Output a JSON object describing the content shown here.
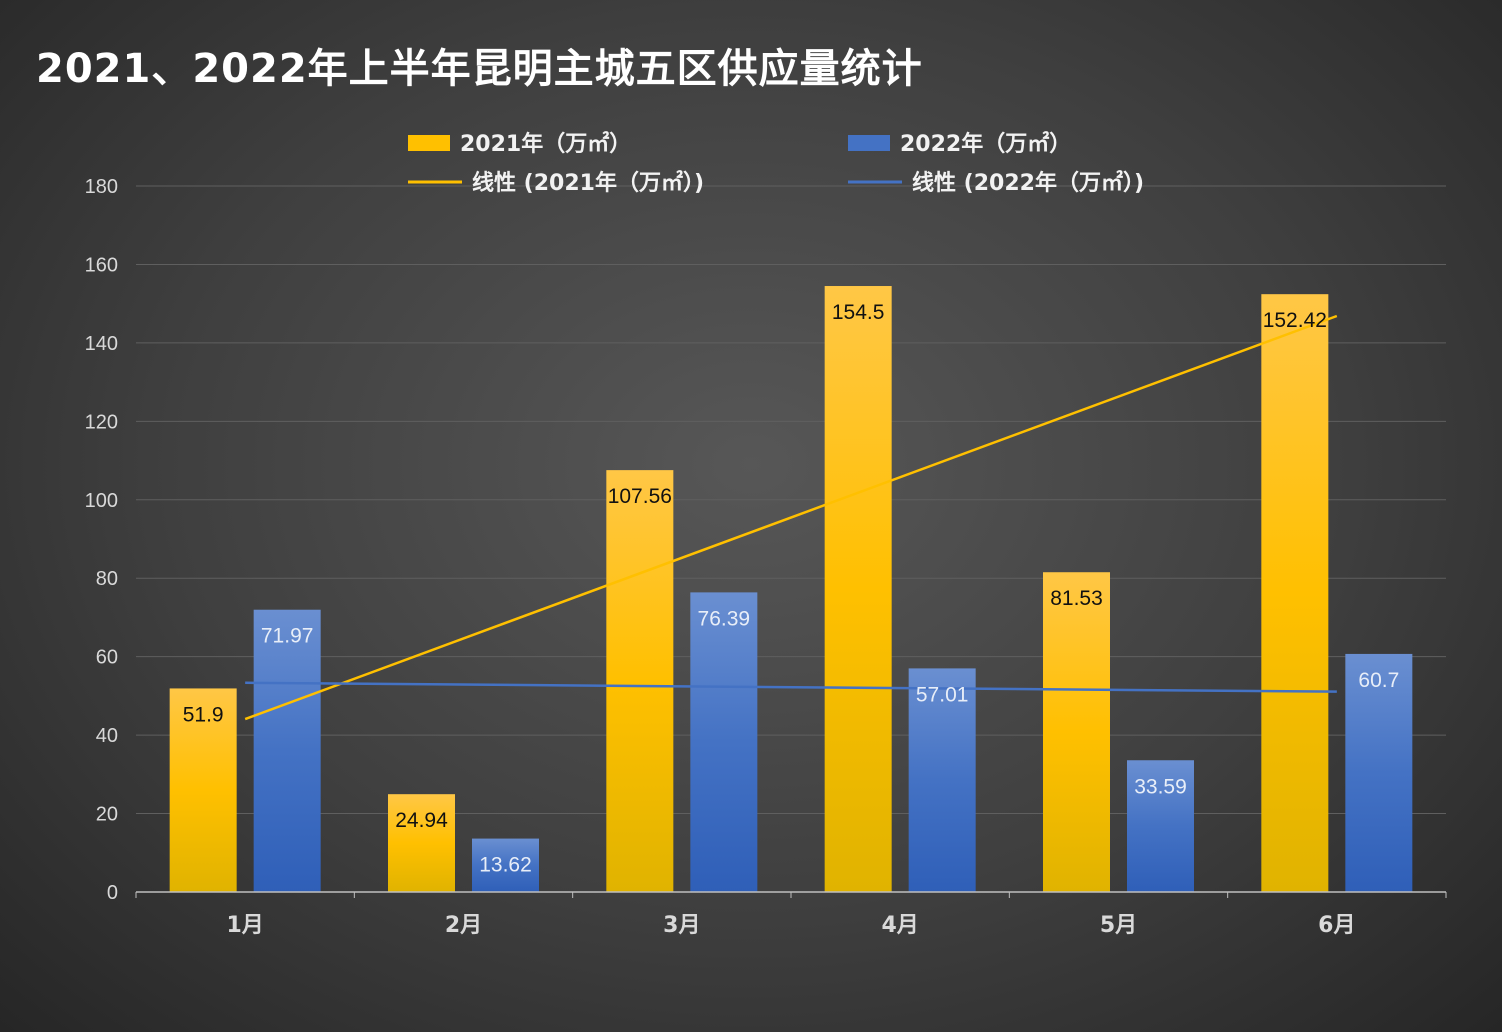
{
  "title": "2021、2022年上半年昆明主城五区供应量统计",
  "colors": {
    "series_2021": "#ffc000",
    "series_2022": "#4472c4",
    "trend_2021": "#ffc000",
    "trend_2022": "#4472c4",
    "grid": "#5f5f5f",
    "axis": "#bfbfbf"
  },
  "legend": {
    "position": "top",
    "items": [
      {
        "label": "2021年（万㎡）",
        "kind": "bar",
        "color": "#ffc000"
      },
      {
        "label": "2022年（万㎡）",
        "kind": "bar",
        "color": "#4472c4"
      },
      {
        "label": "线性 (2021年（万㎡）)",
        "kind": "line",
        "color": "#ffc000"
      },
      {
        "label": "线性 (2022年（万㎡）)",
        "kind": "line",
        "color": "#4472c4"
      }
    ]
  },
  "chart_data": {
    "type": "bar",
    "title": "2021、2022年上半年昆明主城五区供应量统计",
    "categories": [
      "1月",
      "2月",
      "3月",
      "4月",
      "5月",
      "6月"
    ],
    "series": [
      {
        "name": "2021年（万㎡）",
        "values": [
          51.9,
          24.94,
          107.56,
          154.5,
          81.53,
          152.42
        ],
        "labels": [
          "51.9",
          "24.94",
          "107.56",
          "154.5",
          "81.53",
          "152.42"
        ]
      },
      {
        "name": "2022年（万㎡）",
        "values": [
          71.97,
          13.62,
          76.39,
          57.01,
          33.59,
          60.7
        ],
        "labels": [
          "71.97",
          "13.62",
          "76.39",
          "57.01",
          "33.59",
          "60.7"
        ]
      }
    ],
    "trendlines": [
      {
        "name": "线性 (2021年（万㎡）)",
        "type": "linear",
        "of": "2021年（万㎡）"
      },
      {
        "name": "线性 (2022年（万㎡）)",
        "type": "linear",
        "of": "2022年（万㎡）"
      }
    ],
    "ylim": [
      0,
      180
    ],
    "yticks": [
      0,
      20,
      40,
      60,
      80,
      100,
      120,
      140,
      160,
      180
    ],
    "grid": true
  }
}
